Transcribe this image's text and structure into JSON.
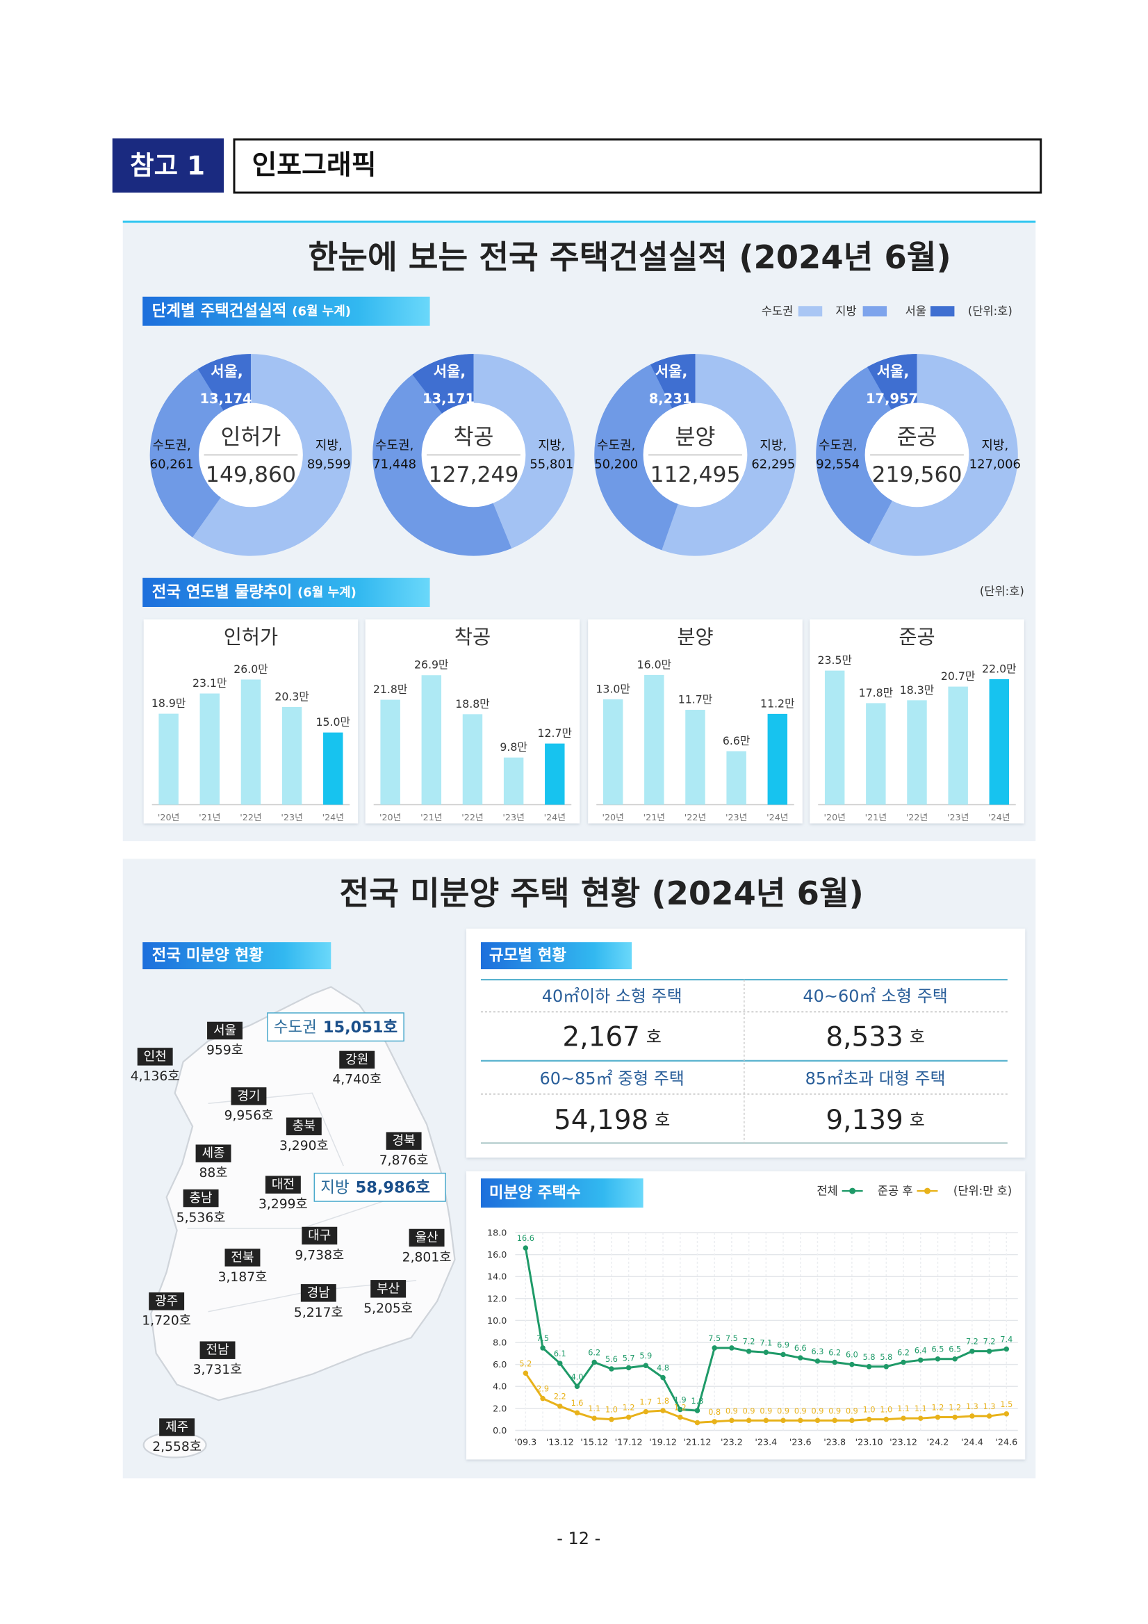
{
  "header": {
    "badge": "참고 1",
    "title": "인포그래픽"
  },
  "panel1": {
    "title": "한눈에 보는 전국 주택건설실적 (2024년 6월)",
    "section1": "단계별 주택건설실적 ",
    "section1_note": "(6월 누계)",
    "legend": [
      "수도권",
      "지방",
      "서울"
    ],
    "legend_colors": [
      "#a9c6f4",
      "#7ea4ec",
      "#3f6fd1"
    ],
    "unit": "(단위:호)",
    "section2": "전국 연도별 물량추이 ",
    "section2_note": "(6월 누계)",
    "unit2": "(단위:호)"
  },
  "chart_data": [
    {
      "type": "pie",
      "title": "인허가",
      "total": 149860,
      "total_label": "149,860",
      "categories": [
        "지방,",
        "수도권,",
        "서울,"
      ],
      "values": [
        89599,
        60261,
        13174
      ],
      "value_labels": [
        "89,599",
        "60,261",
        "13,174"
      ],
      "colors": [
        "#a3c2f3",
        "#6f9ae6",
        "#3f6fd1"
      ]
    },
    {
      "type": "pie",
      "title": "착공",
      "total": 127249,
      "total_label": "127,249",
      "categories": [
        "지방,",
        "수도권,",
        "서울,"
      ],
      "values": [
        55801,
        71448,
        13171
      ],
      "value_labels": [
        "55,801",
        "71,448",
        "13,171"
      ],
      "colors": [
        "#a3c2f3",
        "#6f9ae6",
        "#3f6fd1"
      ]
    },
    {
      "type": "pie",
      "title": "분양",
      "total": 112495,
      "total_label": "112,495",
      "categories": [
        "지방,",
        "수도권,",
        "서울,"
      ],
      "values": [
        62295,
        50200,
        8231
      ],
      "value_labels": [
        "62,295",
        "50,200",
        "8,231"
      ],
      "colors": [
        "#a3c2f3",
        "#6f9ae6",
        "#3f6fd1"
      ]
    },
    {
      "type": "pie",
      "title": "준공",
      "total": 219560,
      "total_label": "219,560",
      "categories": [
        "지방,",
        "수도권,",
        "서울,"
      ],
      "values": [
        127006,
        92554,
        17957
      ],
      "value_labels": [
        "127,006",
        "92,554",
        "17,957"
      ],
      "colors": [
        "#a3c2f3",
        "#6f9ae6",
        "#3f6fd1"
      ]
    },
    {
      "type": "bar",
      "title": "인허가",
      "categories": [
        "'20년",
        "'21년",
        "'22년",
        "'23년",
        "'24년"
      ],
      "values": [
        18.9,
        23.1,
        26.0,
        20.3,
        15.0
      ],
      "value_labels": [
        "18.9만",
        "23.1만",
        "26.0만",
        "20.3만",
        "15.0만"
      ],
      "colors": [
        "#aee9f4",
        "#aee9f4",
        "#aee9f4",
        "#aee9f4",
        "#17c3ef"
      ],
      "ylim": [
        0,
        32
      ]
    },
    {
      "type": "bar",
      "title": "착공",
      "categories": [
        "'20년",
        "'21년",
        "'22년",
        "'23년",
        "'24년"
      ],
      "values": [
        21.8,
        26.9,
        18.8,
        9.8,
        12.7
      ],
      "value_labels": [
        "21.8만",
        "26.9만",
        "18.8만",
        "9.8만",
        "12.7만"
      ],
      "colors": [
        "#aee9f4",
        "#aee9f4",
        "#aee9f4",
        "#aee9f4",
        "#17c3ef"
      ],
      "ylim": [
        0,
        32
      ]
    },
    {
      "type": "bar",
      "title": "분양",
      "categories": [
        "'20년",
        "'21년",
        "'22년",
        "'23년",
        "'24년"
      ],
      "values": [
        13.0,
        16.0,
        11.7,
        6.6,
        11.2
      ],
      "value_labels": [
        "13.0만",
        "16.0만",
        "11.7만",
        "6.6만",
        "11.2만"
      ],
      "colors": [
        "#aee9f4",
        "#aee9f4",
        "#aee9f4",
        "#aee9f4",
        "#17c3ef"
      ],
      "ylim": [
        0,
        19
      ]
    },
    {
      "type": "bar",
      "title": "준공",
      "categories": [
        "'20년",
        "'21년",
        "'22년",
        "'23년",
        "'24년"
      ],
      "values": [
        23.5,
        17.8,
        18.3,
        20.7,
        22.0
      ],
      "value_labels": [
        "23.5만",
        "17.8만",
        "18.3만",
        "20.7만",
        "22.0만"
      ],
      "colors": [
        "#aee9f4",
        "#aee9f4",
        "#aee9f4",
        "#aee9f4",
        "#17c3ef"
      ],
      "ylim": [
        0,
        27
      ]
    },
    {
      "type": "line",
      "title": "미분양 주택수",
      "unit": "(단위:만 호)",
      "grid": true,
      "categories": [
        "'09.3",
        null,
        "'13.12",
        null,
        "'15.12",
        null,
        "'17.12",
        null,
        "'19.12",
        null,
        "'21.12",
        null,
        "'23.2",
        null,
        "'23.4",
        null,
        "'23.6",
        null,
        "'23.8",
        null,
        "'23.10",
        null,
        "'23.12",
        null,
        "'24.2",
        null,
        "'24.4",
        null,
        "'24.6"
      ],
      "ylim": [
        0,
        18
      ],
      "yticks": [
        {
          "value": 0,
          "label": "0.0"
        },
        {
          "value": 2,
          "label": "2.0"
        },
        {
          "value": 4,
          "label": "4.0"
        },
        {
          "value": 6,
          "label": "6.0"
        },
        {
          "value": 8,
          "label": "8.0"
        },
        {
          "value": 10,
          "label": "10.0"
        },
        {
          "value": 12,
          "label": "12.0"
        },
        {
          "value": 14,
          "label": "14.0"
        },
        {
          "value": 16,
          "label": "16.0"
        },
        {
          "value": 18,
          "label": "18.0"
        }
      ],
      "series": [
        {
          "name": "전체",
          "color": "#1e9a68",
          "values": [
            16.6,
            7.5,
            6.1,
            4.0,
            6.2,
            5.6,
            5.7,
            5.9,
            4.8,
            1.9,
            1.8,
            7.5,
            7.5,
            7.2,
            7.1,
            6.9,
            6.6,
            6.3,
            6.2,
            6.0,
            5.8,
            5.8,
            6.2,
            6.4,
            6.5,
            6.5,
            7.2,
            7.2,
            7.4
          ],
          "value_labels": [
            "16.6",
            "7.5",
            "6.1",
            "4.0",
            "6.2",
            "5.6",
            "5.7",
            "5.9",
            "4.8",
            "1.9",
            "1.8",
            "7.5",
            "7.5",
            "7.2",
            "7.1",
            "6.9",
            "6.6",
            "6.3",
            "6.2",
            "6.0",
            "5.8",
            "5.8",
            "6.2",
            "6.4",
            "6.5",
            "6.5",
            "7.2",
            "7.2",
            "7.4"
          ]
        },
        {
          "name": "준공 후",
          "color": "#e8b21a",
          "values": [
            5.2,
            2.9,
            2.2,
            1.6,
            1.1,
            1.0,
            1.2,
            1.7,
            1.8,
            1.2,
            0.7,
            0.8,
            0.9,
            0.9,
            0.9,
            0.9,
            0.9,
            0.9,
            0.9,
            0.9,
            1.0,
            1.0,
            1.1,
            1.1,
            1.2,
            1.2,
            1.3,
            1.3,
            1.5
          ],
          "value_labels": [
            "5.2",
            "2.9",
            "2.2",
            "1.6",
            "1.1",
            "1.0",
            "1.2",
            "1.7",
            "1.8",
            "1.2",
            null,
            "0.8",
            "0.9",
            "0.9",
            "0.9",
            "0.9",
            "0.9",
            "0.9",
            "0.9",
            "0.9",
            "1.0",
            "1.0",
            "1.1",
            "1.1",
            "1.2",
            "1.2",
            "1.3",
            "1.3",
            "1.5"
          ]
        }
      ]
    }
  ],
  "panel2": {
    "title": "전국 미분양 주택 현황 (2024년 6월)",
    "map_label": "전국 미분양 현황",
    "regions": [
      {
        "name": "서울",
        "value": "959호"
      },
      {
        "name": "인천",
        "value": "4,136호"
      },
      {
        "name": "강원",
        "value": "4,740호"
      },
      {
        "name": "경기",
        "value": "9,956호"
      },
      {
        "name": "충북",
        "value": "3,290호"
      },
      {
        "name": "경북",
        "value": "7,876호"
      },
      {
        "name": "세종",
        "value": "88호"
      },
      {
        "name": "충남",
        "value": "5,536호"
      },
      {
        "name": "대전",
        "value": "3,299호"
      },
      {
        "name": "대구",
        "value": "9,738호"
      },
      {
        "name": "울산",
        "value": "2,801호"
      },
      {
        "name": "전북",
        "value": "3,187호"
      },
      {
        "name": "경남",
        "value": "5,217호"
      },
      {
        "name": "부산",
        "value": "5,205호"
      },
      {
        "name": "광주",
        "value": "1,720호"
      },
      {
        "name": "전남",
        "value": "3,731호"
      },
      {
        "name": "제주",
        "value": "2,558호"
      }
    ],
    "capital": {
      "name": "수도권",
      "value": "15,051호"
    },
    "province": {
      "name": "지방",
      "value": "58,986호"
    },
    "sizes": {
      "label": "규모별 현황",
      "cells": [
        {
          "name": "40㎡이하 소형 주택",
          "value": "2,167",
          "unit": "호"
        },
        {
          "name": "40~60㎡ 소형 주택",
          "value": "8,533",
          "unit": "호"
        },
        {
          "name": "60~85㎡ 중형 주택",
          "value": "54,198",
          "unit": "호"
        },
        {
          "name": "85㎡초과 대형 주택",
          "value": "9,139",
          "unit": "호"
        }
      ]
    }
  },
  "footer": "- 12 -"
}
